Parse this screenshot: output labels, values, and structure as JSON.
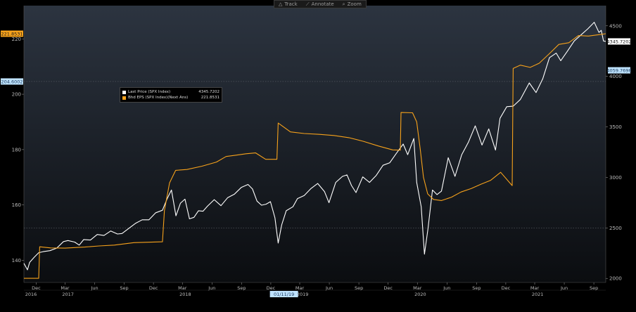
{
  "toolbar": {
    "track_label": "Track",
    "annotate_label": "Annotate",
    "zoom_label": "Zoom"
  },
  "legend": {
    "items": [
      {
        "name": "Last Price (SPX Index)",
        "value": "4345.7202",
        "color": "#ffffff"
      },
      {
        "name": "Bhd EPS (SPX Index)(Next Ans)",
        "value": "221.8531",
        "color": "#f7a21b"
      }
    ]
  },
  "colors": {
    "price_line": "#ffffff",
    "eps_line": "#f7a21b",
    "eps_tag_bg": "#f7a21b",
    "cross_tag_bg": "#bfe3ff",
    "background_top": "#2c3440",
    "background_bottom": "#0b0d10",
    "grid": "#5a5f66"
  },
  "chart_data": {
    "type": "line",
    "title": "",
    "x_range": [
      "2016-10-24",
      "2021-10-08"
    ],
    "x_ticks": [
      {
        "date": "2016-12-01",
        "label": "Dec"
      },
      {
        "date": "2017-03-01",
        "label": "Mar"
      },
      {
        "date": "2017-06-01",
        "label": "Jun"
      },
      {
        "date": "2017-09-01",
        "label": "Sep"
      },
      {
        "date": "2017-12-01",
        "label": "Dec"
      },
      {
        "date": "2018-03-01",
        "label": "Mar"
      },
      {
        "date": "2018-06-01",
        "label": "Jun"
      },
      {
        "date": "2018-09-01",
        "label": "Sep"
      },
      {
        "date": "2018-12-01",
        "label": "Dec"
      },
      {
        "date": "2019-03-01",
        "label": "Mar"
      },
      {
        "date": "2019-06-01",
        "label": "Jun"
      },
      {
        "date": "2019-09-01",
        "label": "Sep"
      },
      {
        "date": "2019-12-01",
        "label": "Dec"
      },
      {
        "date": "2020-03-01",
        "label": "Mar"
      },
      {
        "date": "2020-06-01",
        "label": "Jun"
      },
      {
        "date": "2020-09-01",
        "label": "Sep"
      },
      {
        "date": "2020-12-01",
        "label": "Dec"
      },
      {
        "date": "2021-03-01",
        "label": "Mar"
      },
      {
        "date": "2021-06-01",
        "label": "Jun"
      },
      {
        "date": "2021-09-01",
        "label": "Sep"
      }
    ],
    "year_labels": [
      {
        "date": "2016-11-15",
        "label": "2016"
      },
      {
        "date": "2017-03-10",
        "label": "2017"
      },
      {
        "date": "2018-03-10",
        "label": "2018"
      },
      {
        "date": "2019-03-10",
        "label": "2019"
      },
      {
        "date": "2020-03-10",
        "label": "2020"
      },
      {
        "date": "2021-03-10",
        "label": "2021"
      }
    ],
    "cursor_date_label": "01/11/19",
    "cursor_date": "2019-01-11",
    "left_axis": {
      "min": 132,
      "max": 232,
      "ticks": [
        140,
        160,
        180,
        200,
        220
      ]
    },
    "right_axis": {
      "min": 1960,
      "max": 4700,
      "ticks": [
        2000,
        2500,
        3000,
        3500,
        4000,
        4500
      ]
    },
    "dotted_gridlines": [
      {
        "axis": "left",
        "value": 204.6002
      },
      {
        "axis": "right",
        "value": 2500
      }
    ],
    "series": [
      {
        "name": "Last Price (SPX Index)",
        "axis": "right",
        "color": "#ffffff",
        "points": [
          [
            "2016-10-24",
            2150
          ],
          [
            "2016-11-04",
            2085
          ],
          [
            "2016-11-11",
            2160
          ],
          [
            "2016-11-25",
            2210
          ],
          [
            "2016-12-09",
            2255
          ],
          [
            "2016-12-23",
            2265
          ],
          [
            "2017-01-13",
            2275
          ],
          [
            "2017-02-03",
            2300
          ],
          [
            "2017-02-24",
            2365
          ],
          [
            "2017-03-10",
            2375
          ],
          [
            "2017-03-31",
            2360
          ],
          [
            "2017-04-14",
            2330
          ],
          [
            "2017-04-28",
            2385
          ],
          [
            "2017-05-19",
            2380
          ],
          [
            "2017-06-09",
            2435
          ],
          [
            "2017-06-30",
            2425
          ],
          [
            "2017-07-21",
            2470
          ],
          [
            "2017-08-11",
            2440
          ],
          [
            "2017-08-25",
            2445
          ],
          [
            "2017-09-15",
            2495
          ],
          [
            "2017-10-06",
            2545
          ],
          [
            "2017-10-27",
            2580
          ],
          [
            "2017-11-17",
            2580
          ],
          [
            "2017-12-08",
            2650
          ],
          [
            "2017-12-29",
            2675
          ],
          [
            "2018-01-12",
            2785
          ],
          [
            "2018-01-26",
            2875
          ],
          [
            "2018-02-09",
            2620
          ],
          [
            "2018-02-23",
            2745
          ],
          [
            "2018-03-09",
            2785
          ],
          [
            "2018-03-23",
            2590
          ],
          [
            "2018-04-06",
            2605
          ],
          [
            "2018-04-20",
            2670
          ],
          [
            "2018-05-04",
            2665
          ],
          [
            "2018-05-18",
            2715
          ],
          [
            "2018-06-08",
            2780
          ],
          [
            "2018-06-29",
            2720
          ],
          [
            "2018-07-20",
            2800
          ],
          [
            "2018-08-10",
            2835
          ],
          [
            "2018-08-31",
            2900
          ],
          [
            "2018-09-21",
            2930
          ],
          [
            "2018-10-05",
            2885
          ],
          [
            "2018-10-19",
            2765
          ],
          [
            "2018-11-02",
            2725
          ],
          [
            "2018-11-16",
            2735
          ],
          [
            "2018-11-30",
            2760
          ],
          [
            "2018-12-14",
            2600
          ],
          [
            "2018-12-24",
            2350
          ],
          [
            "2019-01-04",
            2530
          ],
          [
            "2019-01-18",
            2670
          ],
          [
            "2019-02-08",
            2710
          ],
          [
            "2019-02-22",
            2790
          ],
          [
            "2019-03-15",
            2820
          ],
          [
            "2019-04-05",
            2890
          ],
          [
            "2019-04-26",
            2940
          ],
          [
            "2019-05-17",
            2860
          ],
          [
            "2019-05-31",
            2750
          ],
          [
            "2019-06-21",
            2950
          ],
          [
            "2019-07-12",
            3010
          ],
          [
            "2019-07-26",
            3025
          ],
          [
            "2019-08-09",
            2920
          ],
          [
            "2019-08-23",
            2850
          ],
          [
            "2019-09-13",
            3005
          ],
          [
            "2019-10-04",
            2950
          ],
          [
            "2019-10-25",
            3020
          ],
          [
            "2019-11-15",
            3120
          ],
          [
            "2019-12-06",
            3145
          ],
          [
            "2019-12-27",
            3240
          ],
          [
            "2020-01-17",
            3330
          ],
          [
            "2020-01-31",
            3225
          ],
          [
            "2020-02-19",
            3385
          ],
          [
            "2020-02-28",
            2950
          ],
          [
            "2020-03-13",
            2710
          ],
          [
            "2020-03-23",
            2240
          ],
          [
            "2020-04-03",
            2490
          ],
          [
            "2020-04-17",
            2875
          ],
          [
            "2020-05-01",
            2830
          ],
          [
            "2020-05-15",
            2865
          ],
          [
            "2020-06-05",
            3195
          ],
          [
            "2020-06-26",
            3010
          ],
          [
            "2020-07-17",
            3225
          ],
          [
            "2020-08-07",
            3350
          ],
          [
            "2020-08-28",
            3510
          ],
          [
            "2020-09-18",
            3320
          ],
          [
            "2020-10-09",
            3480
          ],
          [
            "2020-10-30",
            3270
          ],
          [
            "2020-11-13",
            3585
          ],
          [
            "2020-12-04",
            3700
          ],
          [
            "2020-12-24",
            3705
          ],
          [
            "2021-01-15",
            3770
          ],
          [
            "2021-02-12",
            3935
          ],
          [
            "2021-03-05",
            3840
          ],
          [
            "2021-03-26",
            3975
          ],
          [
            "2021-04-16",
            4185
          ],
          [
            "2021-05-07",
            4230
          ],
          [
            "2021-05-21",
            4155
          ],
          [
            "2021-06-11",
            4250
          ],
          [
            "2021-07-02",
            4350
          ],
          [
            "2021-07-23",
            4410
          ],
          [
            "2021-08-13",
            4470
          ],
          [
            "2021-09-02",
            4535
          ],
          [
            "2021-09-17",
            4435
          ],
          [
            "2021-09-24",
            4455
          ],
          [
            "2021-10-01",
            4350
          ],
          [
            "2021-10-08",
            4345.7202
          ]
        ]
      },
      {
        "name": "Bhd EPS (SPX Index)(Next Ans)",
        "axis": "left",
        "color": "#f7a21b",
        "points": [
          [
            "2016-10-24",
            133.5
          ],
          [
            "2016-12-09",
            133.5
          ],
          [
            "2016-12-12",
            144.9
          ],
          [
            "2017-01-15",
            144.5
          ],
          [
            "2017-03-01",
            144.4
          ],
          [
            "2017-05-01",
            144.8
          ],
          [
            "2017-06-15",
            145.2
          ],
          [
            "2017-08-01",
            145.5
          ],
          [
            "2017-10-01",
            146.4
          ],
          [
            "2017-12-29",
            146.7
          ],
          [
            "2018-01-04",
            158
          ],
          [
            "2018-01-20",
            168
          ],
          [
            "2018-02-08",
            172.5
          ],
          [
            "2018-03-15",
            172.8
          ],
          [
            "2018-05-01",
            174.0
          ],
          [
            "2018-06-15",
            175.5
          ],
          [
            "2018-07-15",
            177.5
          ],
          [
            "2018-08-15",
            178
          ],
          [
            "2018-09-15",
            178.5
          ],
          [
            "2018-10-15",
            178.8
          ],
          [
            "2018-11-15",
            176.5
          ],
          [
            "2018-12-20",
            176.5
          ],
          [
            "2018-12-24",
            189.6
          ],
          [
            "2019-01-31",
            186.4
          ],
          [
            "2019-03-15",
            185.8
          ],
          [
            "2019-05-01",
            185.5
          ],
          [
            "2019-06-15",
            185.1
          ],
          [
            "2019-08-01",
            184.3
          ],
          [
            "2019-09-15",
            183.0
          ],
          [
            "2019-11-01",
            181.3
          ],
          [
            "2019-12-15",
            179.9
          ],
          [
            "2020-01-08",
            179.8
          ],
          [
            "2020-01-10",
            193.4
          ],
          [
            "2020-02-15",
            193.3
          ],
          [
            "2020-02-28",
            190
          ],
          [
            "2020-03-10",
            180
          ],
          [
            "2020-03-20",
            170
          ],
          [
            "2020-04-02",
            164
          ],
          [
            "2020-04-20",
            162.0
          ],
          [
            "2020-05-15",
            161.6
          ],
          [
            "2020-06-15",
            162.8
          ],
          [
            "2020-07-15",
            164.7
          ],
          [
            "2020-08-15",
            165.9
          ],
          [
            "2020-09-15",
            167.5
          ],
          [
            "2020-10-15",
            168.9
          ],
          [
            "2020-11-15",
            171.8
          ],
          [
            "2020-12-21",
            167.0
          ],
          [
            "2020-12-24",
            209.3
          ],
          [
            "2021-01-15",
            210.5
          ],
          [
            "2021-02-15",
            209.7
          ],
          [
            "2021-03-15",
            211.2
          ],
          [
            "2021-04-15",
            214.6
          ],
          [
            "2021-05-15",
            218.0
          ],
          [
            "2021-06-15",
            218.6
          ],
          [
            "2021-07-15",
            221.2
          ],
          [
            "2021-08-15",
            221.0
          ],
          [
            "2021-09-15",
            221.5
          ],
          [
            "2021-10-08",
            221.8531
          ]
        ]
      }
    ],
    "value_tags": [
      {
        "axis": "left",
        "value": 221.8531,
        "label": "221.8531",
        "style": "eps"
      },
      {
        "axis": "left",
        "value": 204.6002,
        "label": "204.6002",
        "style": "cross"
      },
      {
        "axis": "right",
        "value": 4345.7202,
        "label": "4345.7202",
        "style": "price"
      },
      {
        "axis": "right",
        "value": 4059.7698,
        "label": "4059.7698",
        "style": "cross"
      }
    ]
  }
}
